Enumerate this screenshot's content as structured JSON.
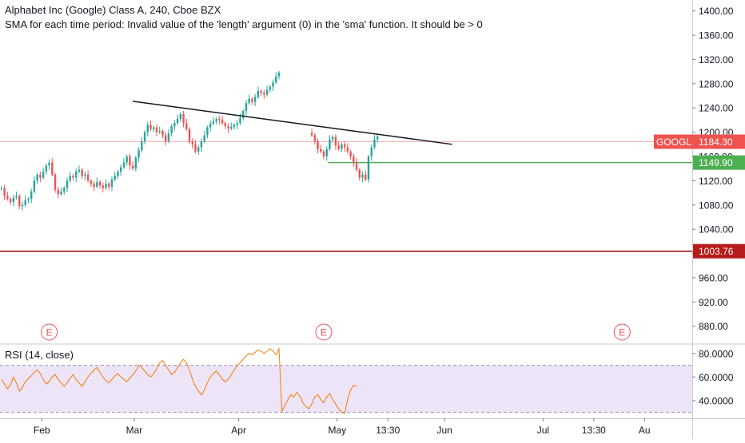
{
  "header": {
    "title": "Alphabet Inc (Google) Class A, 240, Cboe BZX",
    "error": "SMA for each time period: Invalid value of the 'length' argument (0) in the 'sma' function. It should be > 0"
  },
  "rsi_panel": {
    "title": "RSI (14, close)"
  },
  "colors": {
    "up": "#26a69a",
    "down": "#ef5350",
    "trend_line": "#131722",
    "goog_line": "#f4b6ae",
    "goog_badge": "#ef5350",
    "support_line": "#4caf50",
    "support_badge": "#4caf50",
    "low_line": "#8b0000",
    "low_badge": "#b71c1c",
    "rsi_line": "#f57c00",
    "rsi_band": "#eadff7",
    "earnings": "#ef5350"
  },
  "chart_data": [
    {
      "type": "candlestick",
      "symbol": "GOOGL",
      "y_ticks": [
        "1400.00",
        "1360.00",
        "1320.00",
        "1280.00",
        "1240.00",
        "1200.00",
        "1160.00",
        "1120.00",
        "1080.00",
        "1040.00",
        "1000.00",
        "960.00",
        "920.00",
        "880.00"
      ],
      "ylim": [
        852,
        1418
      ],
      "x_labels": [
        {
          "label": "Feb",
          "x": 14
        },
        {
          "label": "Mar",
          "x": 45
        },
        {
          "label": "Apr",
          "x": 80
        },
        {
          "label": "May",
          "x": 113
        },
        {
          "label": "13:30",
          "x": 130
        },
        {
          "label": "Jun",
          "x": 149
        },
        {
          "label": "Jul",
          "x": 182
        },
        {
          "label": "13:30",
          "x": 199
        },
        {
          "label": "Au",
          "x": 216
        }
      ],
      "xlim": [
        0,
        232
      ],
      "closes": [
        1108,
        1095,
        1090,
        1085,
        1092,
        1095,
        1078,
        1080,
        1088,
        1090,
        1102,
        1120,
        1130,
        1125,
        1135,
        1145,
        1150,
        1130,
        1105,
        1098,
        1102,
        1108,
        1120,
        1128,
        1125,
        1135,
        1138,
        1128,
        1130,
        1120,
        1115,
        1110,
        1118,
        1112,
        1108,
        1115,
        1110,
        1122,
        1128,
        1135,
        1142,
        1150,
        1160,
        1145,
        1140,
        1158,
        1170,
        1185,
        1200,
        1212,
        1205,
        1208,
        1200,
        1202,
        1195,
        1185,
        1198,
        1210,
        1215,
        1222,
        1230,
        1215,
        1205,
        1185,
        1180,
        1168,
        1175,
        1185,
        1195,
        1208,
        1214,
        1218,
        1222,
        1220,
        1215,
        1210,
        1206,
        1209,
        1212,
        1215,
        1224,
        1235,
        1248,
        1255,
        1250,
        1258,
        1268,
        1265,
        1262,
        1270,
        1275,
        1282,
        1292,
        1298,
        null,
        null,
        null,
        null,
        null,
        null,
        null,
        null,
        null,
        null,
        1195,
        1185,
        1172,
        1168,
        1160,
        1172,
        1188,
        1192,
        1178,
        1172,
        1180,
        1175,
        1168,
        1160,
        1150,
        1138,
        1125,
        1130,
        1122,
        1160,
        1175,
        1188,
        1193
      ],
      "lines": [
        {
          "name": "trend",
          "from": [
            44.5,
            1251
          ],
          "to": [
            151.5,
            1180
          ]
        },
        {
          "name": "support",
          "from": [
            110,
            1149.9
          ],
          "to": [
            232,
            1149.9
          ]
        }
      ],
      "price_labels": [
        {
          "symbol": "GOOGL",
          "value": "1184.30"
        },
        {
          "value": "1149.90"
        },
        {
          "value": "1003.76"
        }
      ],
      "earnings_markers": [
        {
          "label": "E",
          "x": 16.5
        },
        {
          "label": "E",
          "x": 108.5
        },
        {
          "label": "E",
          "x": 208.5
        }
      ]
    },
    {
      "type": "line",
      "title": "RSI (14, close)",
      "y_ticks": [
        "80.0000",
        "60.0000",
        "40.0000"
      ],
      "ylim": [
        25,
        88
      ],
      "band": [
        30,
        70
      ],
      "xlim": [
        0,
        232
      ],
      "values": [
        58,
        54,
        50,
        53,
        60,
        55,
        48,
        51,
        56,
        59,
        61,
        64,
        66,
        63,
        58,
        54,
        56,
        60,
        62,
        58,
        55,
        52,
        55,
        59,
        62,
        58,
        55,
        52,
        56,
        60,
        63,
        66,
        68,
        64,
        60,
        57,
        55,
        58,
        61,
        63,
        60,
        58,
        56,
        59,
        62,
        65,
        70,
        68,
        65,
        62,
        60,
        63,
        67,
        72,
        74,
        70,
        66,
        62,
        64,
        68,
        72,
        75,
        72,
        66,
        58,
        52,
        48,
        45,
        49,
        55,
        60,
        63,
        65,
        62,
        58,
        56,
        58,
        62,
        66,
        70,
        72,
        75,
        78,
        80,
        79,
        81,
        83,
        82,
        80,
        82,
        84,
        82,
        79,
        84,
        31,
        36,
        41,
        45,
        43,
        47,
        44,
        38,
        35,
        33,
        37,
        43,
        45,
        41,
        38,
        43,
        46,
        41,
        37,
        33,
        30,
        29,
        41,
        49,
        53,
        52
      ]
    }
  ]
}
